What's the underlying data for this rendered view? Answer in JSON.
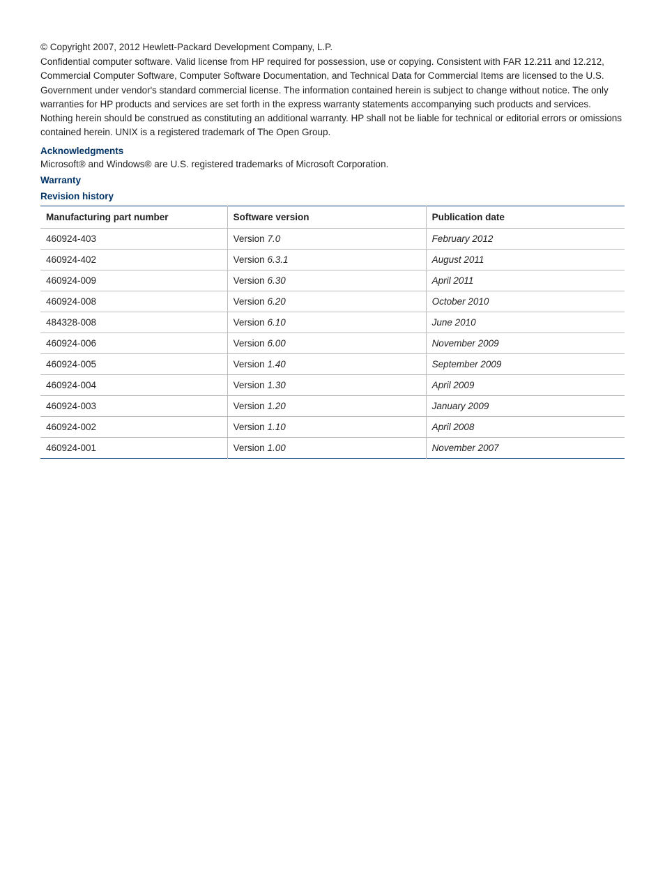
{
  "copyright": "© Copyright 2007, 2012 Hewlett-Packard Development Company, L.P.",
  "legal": "Confidential computer software. Valid license from HP required for possession, use or copying. Consistent with FAR 12.211 and 12.212, Commercial Computer Software, Computer Software Documentation, and Technical Data for Commercial Items are licensed to the U.S. Government under vendor's standard commercial license. The information contained herein is subject to change without notice. The only warranties for HP products and services are set forth in the express warranty statements accompanying such products and services. Nothing herein should be construed as constituting an additional warranty. HP shall not be liable for technical or editorial errors or omissions contained herein. UNIX is a registered trademark of The Open Group.",
  "headings": {
    "acknowledgments": "Acknowledgments",
    "warranty": "Warranty",
    "revision_history": "Revision history"
  },
  "acknowledgments_text": "Microsoft® and Windows® are U.S. registered trademarks of Microsoft Corporation.",
  "table": {
    "columns": [
      "Manufacturing part number",
      "Software version",
      "Publication date"
    ],
    "version_prefix": "Version ",
    "rows": [
      {
        "part": "460924-403",
        "version": "7.0",
        "date": "February 2012"
      },
      {
        "part": "460924-402",
        "version": "6.3.1",
        "date": "August 2011"
      },
      {
        "part": "460924-009",
        "version": "6.30",
        "date": "April 2011"
      },
      {
        "part": "460924-008",
        "version": "6.20",
        "date": "October 2010"
      },
      {
        "part": "484328-008",
        "version": "6.10",
        "date": "June 2010"
      },
      {
        "part": "460924-006",
        "version": "6.00",
        "date": "November 2009"
      },
      {
        "part": "460924-005",
        "version": "1.40",
        "date": "September 2009"
      },
      {
        "part": "460924-004",
        "version": "1.30",
        "date": "April 2009"
      },
      {
        "part": "460924-003",
        "version": "1.20",
        "date": "January 2009"
      },
      {
        "part": "460924-002",
        "version": "1.10",
        "date": "April 2008"
      },
      {
        "part": "460924-001",
        "version": "1.00",
        "date": "November 2007"
      }
    ]
  }
}
